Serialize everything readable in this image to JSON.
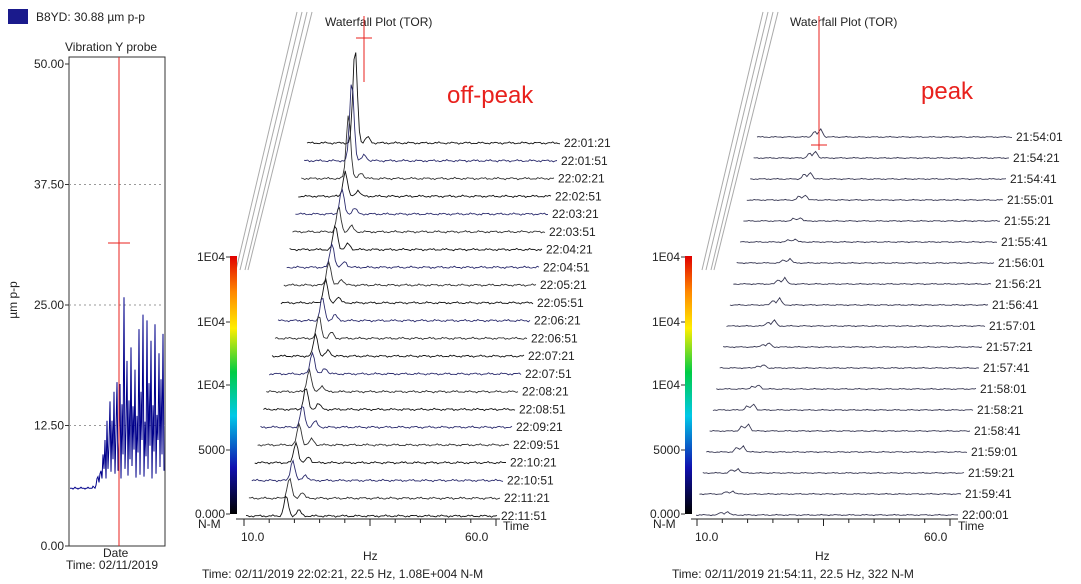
{
  "colors": {
    "trace_color": "#00008b",
    "cursor_color": "#e8211d",
    "annotation_color": "#e8211d",
    "line_color": "#222222"
  },
  "trend": {
    "legend_label": "B8YD: 30.88 µm p-p",
    "title": "Vibration Y probe",
    "ylabel": "µm p-p",
    "xlabel": "Date",
    "status": "Time: 02/11/2019",
    "yticks": [
      "50.00",
      "37.50",
      "25.00",
      "12.50",
      "0.00"
    ]
  },
  "chart_data": [
    {
      "type": "line",
      "title": "Vibration Y probe",
      "xlabel": "Date",
      "ylabel": "µm p-p",
      "ylim": [
        0,
        50
      ],
      "grid": true,
      "series": [
        {
          "name": "B8YD",
          "values": [
            6,
            6,
            6,
            5.9,
            6,
            6.1,
            6,
            6,
            5.9,
            6,
            6,
            6.1,
            6,
            6,
            6,
            5.9,
            6,
            6,
            6.1,
            6,
            6,
            6,
            6,
            6.2,
            6.1,
            6,
            6.3,
            7,
            7.2,
            6.6,
            7.5,
            7.8,
            7,
            9.5,
            8,
            11,
            7,
            13,
            8,
            10.6,
            15,
            7.7,
            13,
            9,
            16,
            7.5,
            11.9,
            17,
            7.8,
            10.8,
            16.8,
            7,
            14.7,
            9.5,
            25.8,
            8,
            12.3,
            19.2,
            7.3,
            15.1,
            9,
            20.6,
            8.3,
            14.5,
            10,
            18.3,
            7.1,
            13.5,
            9.7,
            22.5,
            7.4,
            16,
            11,
            24,
            7.2,
            12.9,
            9.3,
            23.4,
            8,
            16.9,
            10.4,
            21.3,
            7,
            14.6,
            9.8,
            23,
            7.5,
            13.6,
            11,
            20,
            8.2,
            17.3,
            9.5,
            22,
            7.8
          ]
        }
      ]
    },
    {
      "type": "line",
      "title": "Waterfall Plot (TOR)",
      "annotation": "off-peak",
      "xlabel": "Hz",
      "ylabel": "N-M",
      "zlabel": "Time",
      "x_ticks": [
        "10.0",
        "60.0"
      ],
      "y_ticks": [
        "1E04",
        "1E04",
        "1E04",
        "5000",
        "0.000"
      ],
      "times": [
        "22:01:21",
        "22:01:51",
        "22:02:21",
        "22:02:51",
        "22:03:21",
        "22:03:51",
        "22:04:21",
        "22:04:51",
        "22:05:21",
        "22:05:51",
        "22:06:21",
        "22:06:51",
        "22:07:21",
        "22:07:51",
        "22:08:21",
        "22:08:51",
        "22:09:21",
        "22:09:51",
        "22:10:21",
        "22:10:51",
        "22:11:21",
        "22:11:51"
      ],
      "status": "Time: 02/11/2019 22:02:21, 22.5 Hz, 1.08E+004 N-M"
    },
    {
      "type": "line",
      "title": "Waterfall Plot (TOR)",
      "annotation": "peak",
      "xlabel": "Hz",
      "ylabel": "N-M",
      "zlabel": "Time",
      "x_ticks": [
        "10.0",
        "60.0"
      ],
      "y_ticks": [
        "1E04",
        "1E04",
        "1E04",
        "5000",
        "0.000"
      ],
      "times": [
        "21:54:01",
        "21:54:21",
        "21:54:41",
        "21:55:01",
        "21:55:21",
        "21:55:41",
        "21:56:01",
        "21:56:21",
        "21:56:41",
        "21:57:01",
        "21:57:21",
        "21:57:41",
        "21:58:01",
        "21:58:21",
        "21:58:41",
        "21:59:01",
        "21:59:21",
        "21:59:41",
        "22:00:01"
      ],
      "status": "Time: 02/11/2019 21:54:11, 22.5 Hz, 322 N-M"
    }
  ]
}
